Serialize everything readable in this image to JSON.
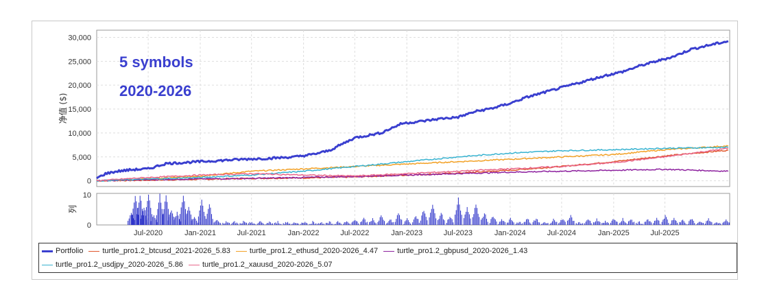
{
  "chart_data": {
    "type": "line",
    "annotations": [
      "5 symbols",
      "2020-2026"
    ],
    "main_panel": {
      "ylabel": "净值 ($)",
      "yticks": [
        0,
        5000,
        10000,
        15000,
        20000,
        25000,
        30000
      ],
      "ytick_labels": [
        "0",
        "5,000",
        "10,000",
        "15,000",
        "20,000",
        "25,000",
        "30,000"
      ],
      "ylim": [
        -1200,
        31500
      ],
      "grid": true
    },
    "sub_panel": {
      "ylabel": "列",
      "type": "bar",
      "yticks": [
        0,
        10
      ],
      "ytick_labels": [
        "0",
        "10"
      ],
      "ylim": [
        0,
        10.5
      ]
    },
    "xlim": [
      "2020-01-01",
      "2026-02-15"
    ],
    "xticks": [
      "2020-07-01",
      "2021-01-01",
      "2021-07-01",
      "2022-01-01",
      "2022-07-01",
      "2023-01-01",
      "2023-07-01",
      "2024-01-01",
      "2024-07-01",
      "2025-01-01",
      "2025-07-01"
    ],
    "xtick_labels": [
      "Jul-2020",
      "Jan-2021",
      "Jul-2021",
      "Jan-2022",
      "Jul-2022",
      "Jan-2023",
      "Jul-2023",
      "Jan-2024",
      "Jul-2024",
      "Jan-2025",
      "Jul-2025"
    ],
    "series": [
      {
        "name": "Portfolio",
        "color": "#3a3fcf",
        "width": 3,
        "x": [
          "2020-01-01",
          "2020-02-01",
          "2020-03-15",
          "2020-05-01",
          "2020-07-01",
          "2020-09-01",
          "2020-12-01",
          "2021-03-01",
          "2021-06-01",
          "2021-09-01",
          "2021-12-01",
          "2022-02-01",
          "2022-04-01",
          "2022-07-01",
          "2022-10-01",
          "2022-12-15",
          "2023-03-01",
          "2023-05-01",
          "2023-07-01",
          "2023-09-01",
          "2023-11-01",
          "2024-01-01",
          "2024-03-01",
          "2024-06-01",
          "2024-09-01",
          "2024-12-01",
          "2025-02-01",
          "2025-04-01",
          "2025-06-01",
          "2025-08-01",
          "2025-10-01",
          "2025-12-15",
          "2026-02-10"
        ],
        "y": [
          500,
          1500,
          2000,
          2300,
          2500,
          3600,
          3900,
          4200,
          4500,
          4700,
          5000,
          5500,
          6300,
          9000,
          10000,
          12000,
          12500,
          13000,
          13300,
          14500,
          15200,
          16200,
          17500,
          19000,
          20500,
          22000,
          22800,
          24000,
          25000,
          26000,
          27500,
          28500,
          29200
        ]
      },
      {
        "name": "turtle_pro1.2_btcusd_2021-2026_5.83",
        "color": "#e0552b",
        "width": 1.5,
        "x": [
          "2020-01-01",
          "2020-06-01",
          "2021-01-01",
          "2021-07-01",
          "2022-01-01",
          "2022-07-01",
          "2023-01-01",
          "2023-07-01",
          "2024-01-01",
          "2024-07-01",
          "2025-01-01",
          "2025-07-01",
          "2026-02-10"
        ],
        "y": [
          0,
          100,
          300,
          500,
          600,
          800,
          1200,
          1600,
          2200,
          3000,
          4000,
          5200,
          6400
        ]
      },
      {
        "name": "turtle_pro1.2_ethusd_2020-2026_4.47",
        "color": "#f2a024",
        "width": 1.5,
        "x": [
          "2020-01-01",
          "2020-06-01",
          "2021-01-01",
          "2021-07-01",
          "2022-01-01",
          "2022-07-01",
          "2023-01-01",
          "2023-07-01",
          "2024-01-01",
          "2024-07-01",
          "2025-01-01",
          "2025-07-01",
          "2026-02-10"
        ],
        "y": [
          0,
          300,
          1000,
          2000,
          2500,
          3000,
          3500,
          4000,
          4500,
          5000,
          5500,
          6500,
          7300
        ]
      },
      {
        "name": "turtle_pro1.2_gbpusd_2020-2026_1.43",
        "color": "#8c1f9e",
        "width": 1.5,
        "x": [
          "2020-01-01",
          "2020-06-01",
          "2021-01-01",
          "2021-07-01",
          "2022-01-01",
          "2022-07-01",
          "2023-01-01",
          "2023-07-01",
          "2024-01-01",
          "2024-07-01",
          "2025-01-01",
          "2025-07-01",
          "2026-02-10"
        ],
        "y": [
          0,
          200,
          400,
          500,
          700,
          900,
          1200,
          1500,
          1800,
          2000,
          2200,
          2400,
          2000
        ]
      },
      {
        "name": "turtle_pro1.2_usdjpy_2020-2026_5.86",
        "color": "#36b2d0",
        "width": 1.5,
        "x": [
          "2020-01-01",
          "2020-06-01",
          "2021-01-01",
          "2021-07-01",
          "2022-01-01",
          "2022-07-01",
          "2023-01-01",
          "2023-07-01",
          "2024-01-01",
          "2024-07-01",
          "2025-01-01",
          "2025-07-01",
          "2026-02-10"
        ],
        "y": [
          0,
          300,
          700,
          1200,
          2000,
          3000,
          4000,
          5000,
          5800,
          6300,
          6500,
          6800,
          7000
        ]
      },
      {
        "name": "turtle_pro1.2_xauusd_2020-2026_5.07",
        "color": "#e8668a",
        "width": 1.5,
        "x": [
          "2020-01-01",
          "2020-06-01",
          "2021-01-01",
          "2021-07-01",
          "2022-01-01",
          "2022-07-01",
          "2023-01-01",
          "2023-07-01",
          "2024-01-01",
          "2024-07-01",
          "2025-01-01",
          "2025-07-01",
          "2026-02-10"
        ],
        "y": [
          0,
          600,
          1200,
          1500,
          1200,
          1000,
          1500,
          2000,
          2500,
          3000,
          3800,
          5000,
          6800
        ]
      }
    ],
    "bar_series": {
      "color": "#2d33c9",
      "x": [
        "2020-05-01",
        "2020-05-15",
        "2020-06-01",
        "2020-06-15",
        "2020-07-01",
        "2020-07-20",
        "2020-08-10",
        "2020-09-01",
        "2020-09-20",
        "2020-10-10",
        "2020-11-01",
        "2020-11-20",
        "2020-12-10",
        "2021-01-05",
        "2021-02-01",
        "2021-03-01",
        "2021-04-01",
        "2021-05-01",
        "2021-06-01",
        "2021-07-01",
        "2021-08-01",
        "2021-09-01",
        "2021-10-01",
        "2021-11-01",
        "2021-12-01",
        "2022-01-01",
        "2022-02-01",
        "2022-03-01",
        "2022-04-01",
        "2022-05-01",
        "2022-06-01",
        "2022-07-01",
        "2022-08-01",
        "2022-09-01",
        "2022-10-01",
        "2022-11-01",
        "2022-12-01",
        "2023-01-01",
        "2023-02-01",
        "2023-03-01",
        "2023-04-01",
        "2023-05-01",
        "2023-06-01",
        "2023-07-01",
        "2023-08-01",
        "2023-09-01",
        "2023-10-01",
        "2023-11-01",
        "2023-12-01",
        "2024-01-01",
        "2024-02-01",
        "2024-03-01",
        "2024-04-01",
        "2024-05-01",
        "2024-06-01",
        "2024-07-01",
        "2024-08-01",
        "2024-09-01",
        "2024-10-01",
        "2024-11-01",
        "2024-12-01",
        "2025-01-01",
        "2025-02-01",
        "2025-03-01",
        "2025-04-01",
        "2025-05-01",
        "2025-06-01",
        "2025-07-01",
        "2025-08-01",
        "2025-09-01",
        "2025-10-01",
        "2025-11-01",
        "2025-12-01",
        "2026-01-01",
        "2026-02-01"
      ],
      "y": [
        4,
        10,
        10,
        6,
        10,
        3,
        10,
        10,
        5,
        4,
        10,
        6,
        3,
        8,
        7,
        2,
        1,
        1,
        1,
        1,
        1,
        1,
        1,
        1,
        1,
        1,
        1,
        1,
        1,
        1,
        1,
        2,
        2,
        2,
        3,
        2,
        4,
        2,
        3,
        5,
        7,
        4,
        3,
        9,
        6,
        7,
        4,
        3,
        2,
        2,
        1,
        2,
        2,
        1,
        2,
        2,
        3,
        1,
        2,
        2,
        1,
        2,
        2,
        2,
        1,
        2,
        2,
        3,
        2,
        2,
        2,
        1,
        2,
        1,
        2
      ]
    }
  },
  "legend": {
    "row1": [
      "Portfolio",
      "turtle_pro1.2_btcusd_2021-2026_5.83",
      "turtle_pro1.2_ethusd_2020-2026_4.47",
      "turtle_pro1.2_gbpusd_2020-2026_1.43"
    ],
    "row2": [
      "turtle_pro1.2_usdjpy_2020-2026_5.86",
      "turtle_pro1.2_xauusd_2020-2026_5.07"
    ]
  }
}
